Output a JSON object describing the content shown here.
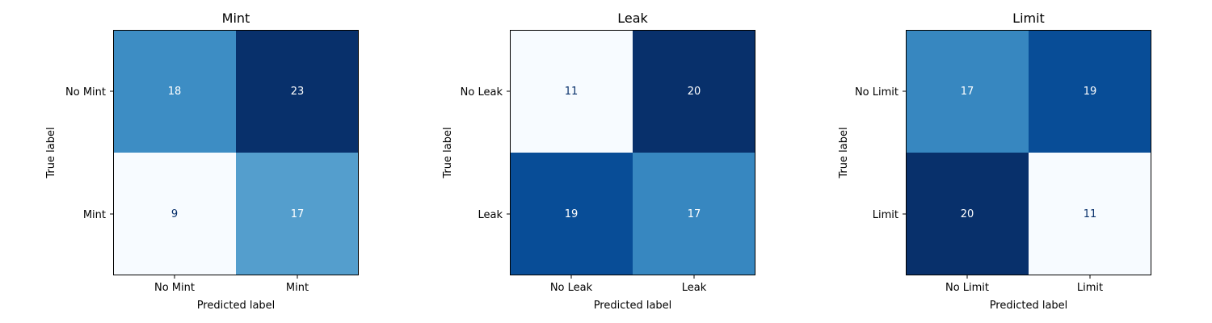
{
  "chart_data": [
    {
      "type": "heatmap",
      "title": "Mint",
      "xlabel": "Predicted label",
      "ylabel": "True label",
      "x_tick_labels": [
        "No Mint",
        "Mint"
      ],
      "y_tick_labels": [
        "No Mint",
        "Mint"
      ],
      "matrix": [
        [
          18,
          23
        ],
        [
          9,
          17
        ]
      ],
      "colormap": "Blues",
      "grid": false
    },
    {
      "type": "heatmap",
      "title": "Leak",
      "xlabel": "Predicted label",
      "ylabel": "True label",
      "x_tick_labels": [
        "No Leak",
        "Leak"
      ],
      "y_tick_labels": [
        "No Leak",
        "Leak"
      ],
      "matrix": [
        [
          11,
          20
        ],
        [
          19,
          17
        ]
      ],
      "colormap": "Blues",
      "grid": false
    },
    {
      "type": "heatmap",
      "title": "Limit",
      "xlabel": "Predicted label",
      "ylabel": "True label",
      "x_tick_labels": [
        "No Limit",
        "Limit"
      ],
      "y_tick_labels": [
        "No Limit",
        "Limit"
      ],
      "matrix": [
        [
          17,
          19
        ],
        [
          20,
          11
        ]
      ],
      "colormap": "Blues",
      "grid": false
    }
  ],
  "colors": {
    "cmap_light": "#f7fbff",
    "cmap_dark": "#08306b",
    "text_on_light": "#08306b",
    "text_on_dark": "#ffffff",
    "axis": "#000000"
  }
}
